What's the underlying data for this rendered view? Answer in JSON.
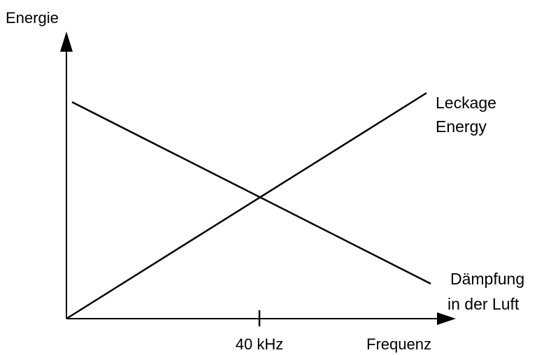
{
  "chart_data": {
    "type": "line",
    "ylabel": "Energie",
    "xlabel": "Frequenz",
    "x_ticks": [
      "40 kHz"
    ],
    "series": [
      {
        "name": "Leckage Energy",
        "name_lines": [
          "Leckage",
          "Energy"
        ],
        "trend": "increasing"
      },
      {
        "name": "Dämpfung in der Luft",
        "name_lines": [
          "Dämpfung",
          "in der Luft"
        ],
        "trend": "decreasing"
      }
    ],
    "intersection_at": "40 kHz"
  }
}
